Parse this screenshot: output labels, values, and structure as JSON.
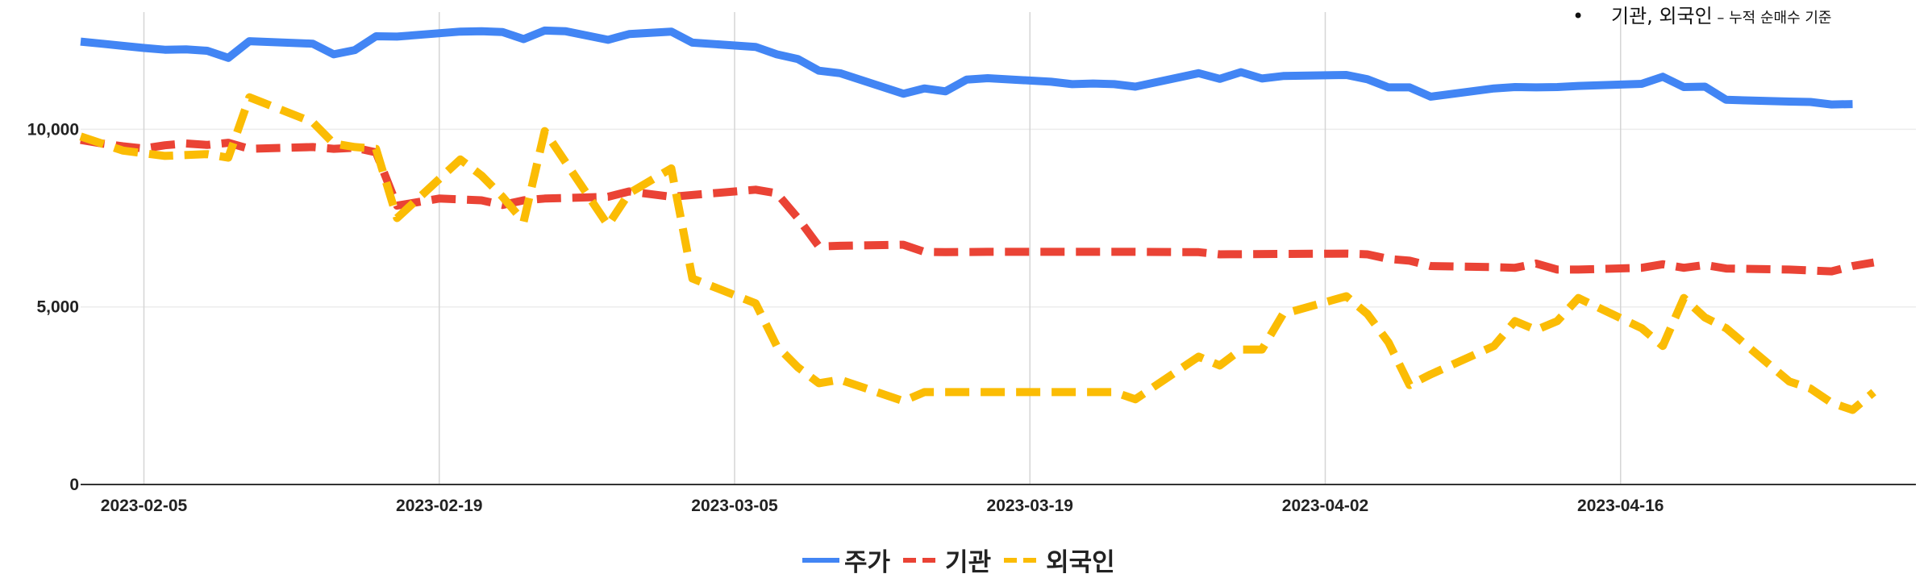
{
  "note": {
    "bullet": "•",
    "main": "기관, 외국인",
    "sub": " – 누적 순매수 기준"
  },
  "legend": [
    {
      "label": "주가",
      "color": "#4285f4",
      "dash": "solid"
    },
    {
      "label": "기관",
      "color": "#ea4335",
      "dash": "dashed"
    },
    {
      "label": "외국인",
      "color": "#fbbc04",
      "dash": "dashed"
    }
  ],
  "chart_data": {
    "type": "line",
    "grid": true,
    "legend_position": "bottom",
    "title": "",
    "xlabel": "",
    "ylabel": "",
    "ylim": [
      0,
      13300
    ],
    "xlim": [
      "2023-02-02",
      "2023-04-30"
    ],
    "yticks": [
      {
        "value": 0,
        "label": "0"
      },
      {
        "value": 5000,
        "label": "5,000"
      },
      {
        "value": 10000,
        "label": "10,000"
      }
    ],
    "xticks": [
      "2023-02-05",
      "2023-02-19",
      "2023-03-05",
      "2023-03-19",
      "2023-04-02",
      "2023-04-16"
    ],
    "series": [
      {
        "name": "주가",
        "color": "#4285f4",
        "dash": "solid",
        "points": [
          [
            "2023-02-02",
            12470
          ],
          [
            "2023-02-03",
            12410
          ],
          [
            "2023-02-04",
            12350
          ],
          [
            "2023-02-05",
            12290
          ],
          [
            "2023-02-06",
            12240
          ],
          [
            "2023-02-07",
            12250
          ],
          [
            "2023-02-08",
            12210
          ],
          [
            "2023-02-09",
            12010
          ],
          [
            "2023-02-10",
            12480
          ],
          [
            "2023-02-13",
            12410
          ],
          [
            "2023-02-14",
            12110
          ],
          [
            "2023-02-15",
            12230
          ],
          [
            "2023-02-16",
            12620
          ],
          [
            "2023-02-17",
            12610
          ],
          [
            "2023-02-20",
            12750
          ],
          [
            "2023-02-21",
            12760
          ],
          [
            "2023-02-22",
            12740
          ],
          [
            "2023-02-23",
            12540
          ],
          [
            "2023-02-24",
            12780
          ],
          [
            "2023-02-25",
            12760
          ],
          [
            "2023-02-27",
            12520
          ],
          [
            "2023-02-28",
            12680
          ],
          [
            "2023-03-02",
            12750
          ],
          [
            "2023-03-03",
            12440
          ],
          [
            "2023-03-06",
            12320
          ],
          [
            "2023-03-07",
            12110
          ],
          [
            "2023-03-08",
            11980
          ],
          [
            "2023-03-09",
            11650
          ],
          [
            "2023-03-10",
            11580
          ],
          [
            "2023-03-13",
            11000
          ],
          [
            "2023-03-14",
            11150
          ],
          [
            "2023-03-15",
            11070
          ],
          [
            "2023-03-16",
            11400
          ],
          [
            "2023-03-17",
            11440
          ],
          [
            "2023-03-20",
            11340
          ],
          [
            "2023-03-21",
            11270
          ],
          [
            "2023-03-22",
            11290
          ],
          [
            "2023-03-23",
            11270
          ],
          [
            "2023-03-24",
            11200
          ],
          [
            "2023-03-27",
            11580
          ],
          [
            "2023-03-28",
            11420
          ],
          [
            "2023-03-29",
            11610
          ],
          [
            "2023-03-30",
            11430
          ],
          [
            "2023-03-31",
            11500
          ],
          [
            "2023-04-03",
            11530
          ],
          [
            "2023-04-04",
            11410
          ],
          [
            "2023-04-05",
            11180
          ],
          [
            "2023-04-06",
            11180
          ],
          [
            "2023-04-07",
            10920
          ],
          [
            "2023-04-10",
            11150
          ],
          [
            "2023-04-11",
            11190
          ],
          [
            "2023-04-12",
            11180
          ],
          [
            "2023-04-13",
            11190
          ],
          [
            "2023-04-14",
            11220
          ],
          [
            "2023-04-17",
            11280
          ],
          [
            "2023-04-18",
            11480
          ],
          [
            "2023-04-19",
            11190
          ],
          [
            "2023-04-20",
            11200
          ],
          [
            "2023-04-21",
            10830
          ],
          [
            "2023-04-24",
            10780
          ],
          [
            "2023-04-25",
            10770
          ],
          [
            "2023-04-26",
            10700
          ],
          [
            "2023-04-27",
            10710
          ]
        ]
      },
      {
        "name": "기관",
        "color": "#ea4335",
        "dash": "dashed",
        "points": [
          [
            "2023-02-02",
            9700
          ],
          [
            "2023-02-03",
            9600
          ],
          [
            "2023-02-04",
            9520
          ],
          [
            "2023-02-05",
            9460
          ],
          [
            "2023-02-06",
            9550
          ],
          [
            "2023-02-07",
            9600
          ],
          [
            "2023-02-08",
            9560
          ],
          [
            "2023-02-09",
            9620
          ],
          [
            "2023-02-10",
            9450
          ],
          [
            "2023-02-13",
            9500
          ],
          [
            "2023-02-14",
            9450
          ],
          [
            "2023-02-15",
            9480
          ],
          [
            "2023-02-16",
            9350
          ],
          [
            "2023-02-17",
            7850
          ],
          [
            "2023-02-19",
            8050
          ],
          [
            "2023-02-21",
            8000
          ],
          [
            "2023-02-22",
            7870
          ],
          [
            "2023-02-23",
            8000
          ],
          [
            "2023-02-24",
            8050
          ],
          [
            "2023-02-27",
            8100
          ],
          [
            "2023-02-28",
            8250
          ],
          [
            "2023-03-02",
            8100
          ],
          [
            "2023-03-06",
            8300
          ],
          [
            "2023-03-07",
            8200
          ],
          [
            "2023-03-08",
            7500
          ],
          [
            "2023-03-09",
            6700
          ],
          [
            "2023-03-10",
            6720
          ],
          [
            "2023-03-13",
            6750
          ],
          [
            "2023-03-14",
            6550
          ],
          [
            "2023-03-15",
            6540
          ],
          [
            "2023-03-17",
            6550
          ],
          [
            "2023-03-22",
            6550
          ],
          [
            "2023-03-24",
            6550
          ],
          [
            "2023-03-27",
            6540
          ],
          [
            "2023-03-28",
            6480
          ],
          [
            "2023-03-31",
            6490
          ],
          [
            "2023-04-03",
            6500
          ],
          [
            "2023-04-04",
            6480
          ],
          [
            "2023-04-05",
            6350
          ],
          [
            "2023-04-06",
            6300
          ],
          [
            "2023-04-07",
            6150
          ],
          [
            "2023-04-10",
            6120
          ],
          [
            "2023-04-11",
            6100
          ],
          [
            "2023-04-12",
            6220
          ],
          [
            "2023-04-13",
            6050
          ],
          [
            "2023-04-14",
            6050
          ],
          [
            "2023-04-17",
            6100
          ],
          [
            "2023-04-18",
            6200
          ],
          [
            "2023-04-19",
            6100
          ],
          [
            "2023-04-20",
            6180
          ],
          [
            "2023-04-21",
            6080
          ],
          [
            "2023-04-24",
            6050
          ],
          [
            "2023-04-26",
            6000
          ],
          [
            "2023-04-27",
            6150
          ],
          [
            "2023-04-28",
            6250
          ]
        ]
      },
      {
        "name": "외국인",
        "color": "#fbbc04",
        "dash": "dashed",
        "points": [
          [
            "2023-02-02",
            9800
          ],
          [
            "2023-02-03",
            9600
          ],
          [
            "2023-02-04",
            9400
          ],
          [
            "2023-02-06",
            9250
          ],
          [
            "2023-02-08",
            9300
          ],
          [
            "2023-02-09",
            9200
          ],
          [
            "2023-02-10",
            10900
          ],
          [
            "2023-02-13",
            10200
          ],
          [
            "2023-02-14",
            9600
          ],
          [
            "2023-02-15",
            9500
          ],
          [
            "2023-02-16",
            9450
          ],
          [
            "2023-02-17",
            7500
          ],
          [
            "2023-02-19",
            8600
          ],
          [
            "2023-02-20",
            9150
          ],
          [
            "2023-02-21",
            8700
          ],
          [
            "2023-02-22",
            8100
          ],
          [
            "2023-02-23",
            7400
          ],
          [
            "2023-02-24",
            9950
          ],
          [
            "2023-02-27",
            7300
          ],
          [
            "2023-02-28",
            8200
          ],
          [
            "2023-03-02",
            8900
          ],
          [
            "2023-03-03",
            5800
          ],
          [
            "2023-03-06",
            5100
          ],
          [
            "2023-03-07",
            3900
          ],
          [
            "2023-03-08",
            3300
          ],
          [
            "2023-03-09",
            2850
          ],
          [
            "2023-03-10",
            2950
          ],
          [
            "2023-03-13",
            2350
          ],
          [
            "2023-03-14",
            2600
          ],
          [
            "2023-03-15",
            2600
          ],
          [
            "2023-03-21",
            2600
          ],
          [
            "2023-03-23",
            2600
          ],
          [
            "2023-03-24",
            2400
          ],
          [
            "2023-03-27",
            3600
          ],
          [
            "2023-03-28",
            3350
          ],
          [
            "2023-03-29",
            3800
          ],
          [
            "2023-03-30",
            3800
          ],
          [
            "2023-03-31",
            4800
          ],
          [
            "2023-04-03",
            5300
          ],
          [
            "2023-04-04",
            4800
          ],
          [
            "2023-04-05",
            4000
          ],
          [
            "2023-04-06",
            2800
          ],
          [
            "2023-04-07",
            3100
          ],
          [
            "2023-04-10",
            3900
          ],
          [
            "2023-04-11",
            4600
          ],
          [
            "2023-04-12",
            4350
          ],
          [
            "2023-04-13",
            4600
          ],
          [
            "2023-04-14",
            5250
          ],
          [
            "2023-04-17",
            4400
          ],
          [
            "2023-04-18",
            3900
          ],
          [
            "2023-04-19",
            5250
          ],
          [
            "2023-04-20",
            4700
          ],
          [
            "2023-04-21",
            4400
          ],
          [
            "2023-04-24",
            2900
          ],
          [
            "2023-04-25",
            2700
          ],
          [
            "2023-04-26",
            2300
          ],
          [
            "2023-04-27",
            2100
          ],
          [
            "2023-04-28",
            2600
          ]
        ]
      }
    ]
  }
}
